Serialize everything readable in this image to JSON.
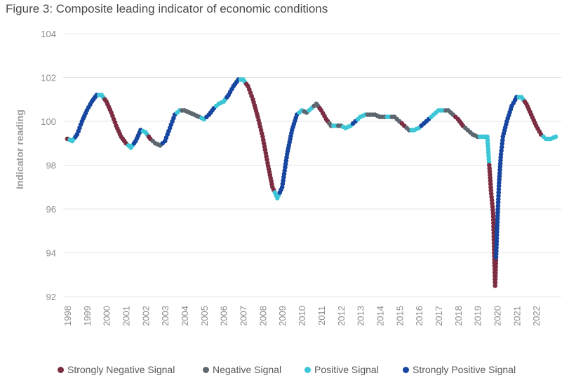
{
  "figure": {
    "title": "Figure 3: Composite leading indicator of economic conditions"
  },
  "chart_data": {
    "type": "scatter",
    "title": "Figure 3: Composite leading indicator of economic conditions",
    "xlabel": "",
    "ylabel": "Indicator reading",
    "ylim": [
      92,
      104
    ],
    "xlim": [
      1998,
      2023
    ],
    "yticks": [
      "92",
      "94",
      "96",
      "98",
      "100",
      "102",
      "104"
    ],
    "xticks": [
      "1998",
      "1999",
      "2000",
      "2001",
      "2002",
      "2003",
      "2004",
      "2005",
      "2006",
      "2007",
      "2008",
      "2009",
      "2010",
      "2011",
      "2012",
      "2013",
      "2014",
      "2015",
      "2016",
      "2017",
      "2018",
      "2019",
      "2020",
      "2021",
      "2022"
    ],
    "grid": "horizontal",
    "legend_position": "bottom",
    "colors": {
      "strongly_negative": "#7b2d42",
      "negative": "#5d6770",
      "positive": "#3cc6d6",
      "strongly_positive": "#1746a0"
    },
    "legend": [
      {
        "key": "strongly_negative",
        "label": "Strongly Negative Signal"
      },
      {
        "key": "negative",
        "label": "Negative Signal"
      },
      {
        "key": "positive",
        "label": "Positive Signal"
      },
      {
        "key": "strongly_positive",
        "label": "Strongly Positive Signal"
      }
    ],
    "series": [
      {
        "x": 1998.0,
        "y": 99.2,
        "signal": "strongly_negative"
      },
      {
        "x": 1998.25,
        "y": 99.1,
        "signal": "positive"
      },
      {
        "x": 1998.5,
        "y": 99.4,
        "signal": "strongly_positive"
      },
      {
        "x": 1998.75,
        "y": 100.0,
        "signal": "strongly_positive"
      },
      {
        "x": 1999.0,
        "y": 100.5,
        "signal": "strongly_positive"
      },
      {
        "x": 1999.25,
        "y": 100.9,
        "signal": "strongly_positive"
      },
      {
        "x": 1999.5,
        "y": 101.2,
        "signal": "strongly_positive"
      },
      {
        "x": 1999.75,
        "y": 101.2,
        "signal": "positive"
      },
      {
        "x": 2000.0,
        "y": 100.9,
        "signal": "strongly_negative"
      },
      {
        "x": 2000.25,
        "y": 100.4,
        "signal": "strongly_negative"
      },
      {
        "x": 2000.5,
        "y": 99.8,
        "signal": "strongly_negative"
      },
      {
        "x": 2000.75,
        "y": 99.3,
        "signal": "strongly_negative"
      },
      {
        "x": 2001.0,
        "y": 99.0,
        "signal": "strongly_negative"
      },
      {
        "x": 2001.25,
        "y": 98.8,
        "signal": "positive"
      },
      {
        "x": 2001.5,
        "y": 99.1,
        "signal": "strongly_positive"
      },
      {
        "x": 2001.75,
        "y": 99.6,
        "signal": "strongly_positive"
      },
      {
        "x": 2002.0,
        "y": 99.5,
        "signal": "positive"
      },
      {
        "x": 2002.25,
        "y": 99.2,
        "signal": "strongly_negative"
      },
      {
        "x": 2002.5,
        "y": 99.0,
        "signal": "negative"
      },
      {
        "x": 2002.75,
        "y": 98.9,
        "signal": "negative"
      },
      {
        "x": 2003.0,
        "y": 99.1,
        "signal": "strongly_positive"
      },
      {
        "x": 2003.25,
        "y": 99.7,
        "signal": "strongly_positive"
      },
      {
        "x": 2003.5,
        "y": 100.3,
        "signal": "strongly_positive"
      },
      {
        "x": 2003.75,
        "y": 100.5,
        "signal": "positive"
      },
      {
        "x": 2004.0,
        "y": 100.5,
        "signal": "negative"
      },
      {
        "x": 2004.25,
        "y": 100.4,
        "signal": "negative"
      },
      {
        "x": 2004.5,
        "y": 100.3,
        "signal": "negative"
      },
      {
        "x": 2004.75,
        "y": 100.2,
        "signal": "negative"
      },
      {
        "x": 2005.0,
        "y": 100.1,
        "signal": "positive"
      },
      {
        "x": 2005.25,
        "y": 100.3,
        "signal": "strongly_positive"
      },
      {
        "x": 2005.5,
        "y": 100.6,
        "signal": "strongly_positive"
      },
      {
        "x": 2005.75,
        "y": 100.8,
        "signal": "positive"
      },
      {
        "x": 2006.0,
        "y": 100.9,
        "signal": "positive"
      },
      {
        "x": 2006.25,
        "y": 101.2,
        "signal": "strongly_positive"
      },
      {
        "x": 2006.5,
        "y": 101.6,
        "signal": "strongly_positive"
      },
      {
        "x": 2006.75,
        "y": 101.9,
        "signal": "strongly_positive"
      },
      {
        "x": 2007.0,
        "y": 101.9,
        "signal": "positive"
      },
      {
        "x": 2007.25,
        "y": 101.6,
        "signal": "strongly_negative"
      },
      {
        "x": 2007.5,
        "y": 101.0,
        "signal": "strongly_negative"
      },
      {
        "x": 2007.75,
        "y": 100.2,
        "signal": "strongly_negative"
      },
      {
        "x": 2008.0,
        "y": 99.3,
        "signal": "strongly_negative"
      },
      {
        "x": 2008.25,
        "y": 98.1,
        "signal": "strongly_negative"
      },
      {
        "x": 2008.5,
        "y": 97.0,
        "signal": "strongly_negative"
      },
      {
        "x": 2008.75,
        "y": 96.5,
        "signal": "positive"
      },
      {
        "x": 2009.0,
        "y": 97.0,
        "signal": "strongly_positive"
      },
      {
        "x": 2009.25,
        "y": 98.5,
        "signal": "strongly_positive"
      },
      {
        "x": 2009.5,
        "y": 99.6,
        "signal": "strongly_positive"
      },
      {
        "x": 2009.75,
        "y": 100.3,
        "signal": "strongly_positive"
      },
      {
        "x": 2010.0,
        "y": 100.5,
        "signal": "positive"
      },
      {
        "x": 2010.25,
        "y": 100.4,
        "signal": "negative"
      },
      {
        "x": 2010.5,
        "y": 100.6,
        "signal": "positive"
      },
      {
        "x": 2010.75,
        "y": 100.8,
        "signal": "negative"
      },
      {
        "x": 2011.0,
        "y": 100.5,
        "signal": "strongly_negative"
      },
      {
        "x": 2011.25,
        "y": 100.1,
        "signal": "strongly_negative"
      },
      {
        "x": 2011.5,
        "y": 99.8,
        "signal": "negative"
      },
      {
        "x": 2011.75,
        "y": 99.8,
        "signal": "positive"
      },
      {
        "x": 2012.0,
        "y": 99.8,
        "signal": "negative"
      },
      {
        "x": 2012.25,
        "y": 99.7,
        "signal": "positive"
      },
      {
        "x": 2012.5,
        "y": 99.8,
        "signal": "positive"
      },
      {
        "x": 2012.75,
        "y": 100.0,
        "signal": "strongly_positive"
      },
      {
        "x": 2013.0,
        "y": 100.2,
        "signal": "positive"
      },
      {
        "x": 2013.25,
        "y": 100.3,
        "signal": "positive"
      },
      {
        "x": 2013.5,
        "y": 100.3,
        "signal": "negative"
      },
      {
        "x": 2013.75,
        "y": 100.3,
        "signal": "negative"
      },
      {
        "x": 2014.0,
        "y": 100.2,
        "signal": "negative"
      },
      {
        "x": 2014.25,
        "y": 100.2,
        "signal": "negative"
      },
      {
        "x": 2014.5,
        "y": 100.2,
        "signal": "positive"
      },
      {
        "x": 2014.75,
        "y": 100.2,
        "signal": "negative"
      },
      {
        "x": 2015.0,
        "y": 100.0,
        "signal": "negative"
      },
      {
        "x": 2015.25,
        "y": 99.8,
        "signal": "strongly_negative"
      },
      {
        "x": 2015.5,
        "y": 99.6,
        "signal": "negative"
      },
      {
        "x": 2015.75,
        "y": 99.6,
        "signal": "positive"
      },
      {
        "x": 2016.0,
        "y": 99.7,
        "signal": "positive"
      },
      {
        "x": 2016.25,
        "y": 99.9,
        "signal": "strongly_positive"
      },
      {
        "x": 2016.5,
        "y": 100.1,
        "signal": "strongly_positive"
      },
      {
        "x": 2016.75,
        "y": 100.3,
        "signal": "positive"
      },
      {
        "x": 2017.0,
        "y": 100.5,
        "signal": "positive"
      },
      {
        "x": 2017.25,
        "y": 100.5,
        "signal": "positive"
      },
      {
        "x": 2017.5,
        "y": 100.5,
        "signal": "negative"
      },
      {
        "x": 2017.75,
        "y": 100.3,
        "signal": "negative"
      },
      {
        "x": 2018.0,
        "y": 100.1,
        "signal": "strongly_negative"
      },
      {
        "x": 2018.25,
        "y": 99.8,
        "signal": "strongly_negative"
      },
      {
        "x": 2018.5,
        "y": 99.6,
        "signal": "negative"
      },
      {
        "x": 2018.75,
        "y": 99.4,
        "signal": "negative"
      },
      {
        "x": 2019.0,
        "y": 99.3,
        "signal": "negative"
      },
      {
        "x": 2019.25,
        "y": 99.3,
        "signal": "positive"
      },
      {
        "x": 2019.5,
        "y": 99.3,
        "signal": "positive"
      },
      {
        "x": 2019.7,
        "y": 96.7,
        "signal": "strongly_negative"
      },
      {
        "x": 2019.8,
        "y": 95.8,
        "signal": "strongly_negative"
      },
      {
        "x": 2019.9,
        "y": 92.5,
        "signal": "strongly_negative"
      },
      {
        "x": 2020.0,
        "y": 95.1,
        "signal": "strongly_positive"
      },
      {
        "x": 2020.1,
        "y": 97.2,
        "signal": "strongly_positive"
      },
      {
        "x": 2020.2,
        "y": 98.5,
        "signal": "strongly_positive"
      },
      {
        "x": 2020.3,
        "y": 99.3,
        "signal": "strongly_positive"
      },
      {
        "x": 2020.5,
        "y": 100.0,
        "signal": "strongly_positive"
      },
      {
        "x": 2020.75,
        "y": 100.7,
        "signal": "strongly_positive"
      },
      {
        "x": 2021.0,
        "y": 101.1,
        "signal": "strongly_positive"
      },
      {
        "x": 2021.25,
        "y": 101.1,
        "signal": "positive"
      },
      {
        "x": 2021.5,
        "y": 100.8,
        "signal": "strongly_negative"
      },
      {
        "x": 2021.75,
        "y": 100.3,
        "signal": "strongly_negative"
      },
      {
        "x": 2022.0,
        "y": 99.8,
        "signal": "strongly_negative"
      },
      {
        "x": 2022.25,
        "y": 99.4,
        "signal": "strongly_negative"
      },
      {
        "x": 2022.5,
        "y": 99.2,
        "signal": "positive"
      },
      {
        "x": 2022.75,
        "y": 99.2,
        "signal": "positive"
      },
      {
        "x": 2023.0,
        "y": 99.3,
        "signal": "positive"
      }
    ]
  }
}
